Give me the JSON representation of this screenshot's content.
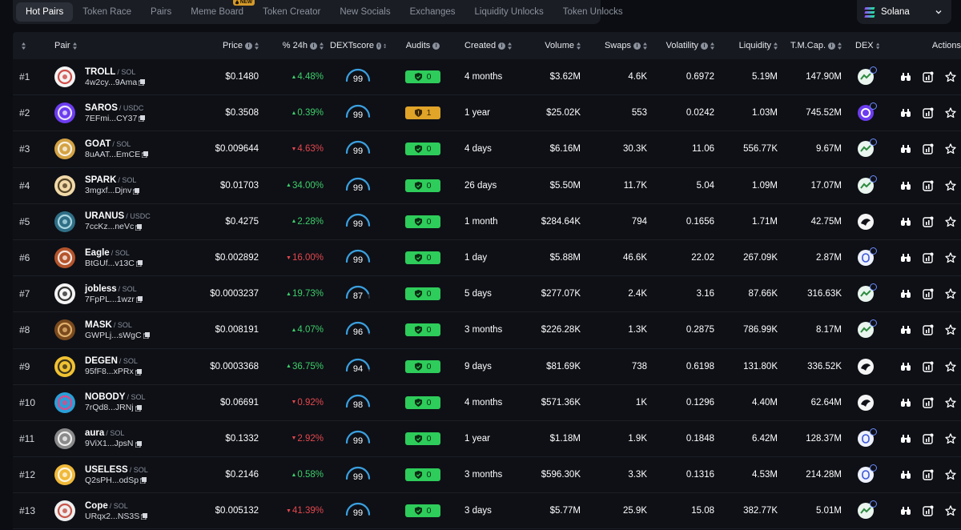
{
  "nav": {
    "tabs": [
      {
        "label": "Hot Pairs",
        "active": true
      },
      {
        "label": "Token Race"
      },
      {
        "label": "Pairs"
      },
      {
        "label": "Meme Board",
        "badge": "NEW"
      },
      {
        "label": "Token Creator"
      },
      {
        "label": "New Socials"
      },
      {
        "label": "Exchanges"
      },
      {
        "label": "Liquidity Unlocks"
      },
      {
        "label": "Token Unlocks"
      }
    ],
    "chain": "Solana"
  },
  "columns": {
    "pair": "Pair",
    "price": "Price",
    "change": "% 24h",
    "score": "DEXTscore",
    "audits": "Audits",
    "created": "Created",
    "volume": "Volume",
    "swaps": "Swaps",
    "volatility": "Volatility",
    "liquidity": "Liquidity",
    "mcap": "T.M.Cap.",
    "dex": "DEX",
    "actions": "Actions"
  },
  "colors": {
    "up": "#3ecf6a",
    "down": "#e5484d",
    "audit_ok": "#2ecc5a",
    "audit_warn": "#e0a428",
    "gauge": "#3aa0e0"
  },
  "rows": [
    {
      "rank": "#1",
      "name": "TROLL",
      "quote": "SOL",
      "addr": "4w2cy...9Ama",
      "price": "$0.1480",
      "dir": "up",
      "change": "4.48%",
      "score": "99",
      "audit_status": "ok",
      "audit_count": "0",
      "created": "4 months",
      "volume": "$3.62M",
      "swaps": "4.6K",
      "volatility": "0.6972",
      "liquidity": "5.19M",
      "mcap": "147.90M",
      "avatar_color": "#f3f3f3",
      "avatar_fg": "#c9302c",
      "dex": "raydium"
    },
    {
      "rank": "#2",
      "name": "SAROS",
      "quote": "USDC",
      "addr": "7EFmi...CY37",
      "price": "$0.3508",
      "dir": "up",
      "change": "0.39%",
      "score": "99",
      "audit_status": "warn",
      "audit_count": "1",
      "created": "1 year",
      "volume": "$25.02K",
      "swaps": "553",
      "volatility": "0.0242",
      "liquidity": "1.03M",
      "mcap": "745.52M",
      "avatar_color": "#6c3cf0",
      "avatar_fg": "#ffffff",
      "dex": "saros"
    },
    {
      "rank": "#3",
      "name": "GOAT",
      "quote": "SOL",
      "addr": "8uAAT...EmCE",
      "price": "$0.009644",
      "dir": "down",
      "change": "4.63%",
      "score": "99",
      "audit_status": "ok",
      "audit_count": "0",
      "created": "4 days",
      "volume": "$6.16M",
      "swaps": "30.3K",
      "volatility": "11.06",
      "liquidity": "556.77K",
      "mcap": "9.67M",
      "avatar_color": "#d4a243",
      "avatar_fg": "#ffffff",
      "dex": "raydium"
    },
    {
      "rank": "#4",
      "name": "SPARK",
      "quote": "SOL",
      "addr": "3mgxf...Djnv",
      "price": "$0.01703",
      "dir": "up",
      "change": "34.00%",
      "score": "99",
      "audit_status": "ok",
      "audit_count": "0",
      "created": "26 days",
      "volume": "$5.50M",
      "swaps": "11.7K",
      "volatility": "5.04",
      "liquidity": "1.09M",
      "mcap": "17.07M",
      "avatar_color": "#f2d9a8",
      "avatar_fg": "#3a2a10",
      "dex": "raydium"
    },
    {
      "rank": "#5",
      "name": "URANUS",
      "quote": "USDC",
      "addr": "7ccKz...neVc",
      "price": "$0.4275",
      "dir": "up",
      "change": "2.28%",
      "score": "99",
      "audit_status": "ok",
      "audit_count": "0",
      "created": "1 month",
      "volume": "$284.64K",
      "swaps": "794",
      "volatility": "0.1656",
      "liquidity": "1.71M",
      "mcap": "42.75M",
      "avatar_color": "#2f6f86",
      "avatar_fg": "#bfe8f2",
      "dex": "orca"
    },
    {
      "rank": "#6",
      "name": "Eagle",
      "quote": "SOL",
      "addr": "BtGUf...v13C",
      "price": "$0.002892",
      "dir": "down",
      "change": "16.00%",
      "score": "99",
      "audit_status": "ok",
      "audit_count": "0",
      "created": "1 day",
      "volume": "$5.88M",
      "swaps": "46.6K",
      "volatility": "22.02",
      "liquidity": "267.09K",
      "mcap": "2.87M",
      "avatar_color": "#b5542c",
      "avatar_fg": "#ffffff",
      "dex": "pump"
    },
    {
      "rank": "#7",
      "name": "jobless",
      "quote": "SOL",
      "addr": "7FpPL...1wzr",
      "price": "$0.0003237",
      "dir": "up",
      "change": "19.73%",
      "score": "87",
      "audit_status": "ok",
      "audit_count": "0",
      "created": "5 days",
      "volume": "$277.07K",
      "swaps": "2.4K",
      "volatility": "3.16",
      "liquidity": "87.66K",
      "mcap": "316.63K",
      "avatar_color": "#f5f5f5",
      "avatar_fg": "#111111",
      "dex": "raydium"
    },
    {
      "rank": "#8",
      "name": "MASK",
      "quote": "SOL",
      "addr": "GWPLj...sWgC",
      "price": "$0.008191",
      "dir": "up",
      "change": "4.07%",
      "score": "96",
      "audit_status": "ok",
      "audit_count": "0",
      "created": "3 months",
      "volume": "$226.28K",
      "swaps": "1.3K",
      "volatility": "0.2875",
      "liquidity": "786.99K",
      "mcap": "8.17M",
      "avatar_color": "#7a4a1e",
      "avatar_fg": "#f2c27a",
      "dex": "raydium"
    },
    {
      "rank": "#9",
      "name": "DEGEN",
      "quote": "SOL",
      "addr": "95fF8...xPRx",
      "price": "$0.0003368",
      "dir": "up",
      "change": "36.75%",
      "score": "94",
      "audit_status": "ok",
      "audit_count": "0",
      "created": "9 days",
      "volume": "$81.69K",
      "swaps": "738",
      "volatility": "0.6198",
      "liquidity": "131.80K",
      "mcap": "336.52K",
      "avatar_color": "#f1c232",
      "avatar_fg": "#1b1b1b",
      "dex": "orca"
    },
    {
      "rank": "#10",
      "name": "NOBODY",
      "quote": "SOL",
      "addr": "7rQd8...JRNj",
      "price": "$0.06691",
      "dir": "down",
      "change": "0.92%",
      "score": "98",
      "audit_status": "ok",
      "audit_count": "0",
      "created": "4 months",
      "volume": "$571.36K",
      "swaps": "1K",
      "volatility": "0.1296",
      "liquidity": "4.40M",
      "mcap": "62.64M",
      "avatar_color": "#2a9fd8",
      "avatar_fg": "#ff3a7a",
      "dex": "orca"
    },
    {
      "rank": "#11",
      "name": "aura",
      "quote": "SOL",
      "addr": "9ViX1...JpsN",
      "price": "$0.1332",
      "dir": "down",
      "change": "2.92%",
      "score": "99",
      "audit_status": "ok",
      "audit_count": "0",
      "created": "1 year",
      "volume": "$1.18M",
      "swaps": "1.9K",
      "volatility": "0.1848",
      "liquidity": "6.42M",
      "mcap": "128.37M",
      "avatar_color": "#8a8a8a",
      "avatar_fg": "#ffffff",
      "dex": "pump"
    },
    {
      "rank": "#12",
      "name": "USELESS",
      "quote": "SOL",
      "addr": "Q2sPH...odSp",
      "price": "$0.2146",
      "dir": "up",
      "change": "0.58%",
      "score": "99",
      "audit_status": "ok",
      "audit_count": "0",
      "created": "3 months",
      "volume": "$596.30K",
      "swaps": "3.3K",
      "volatility": "0.1316",
      "liquidity": "4.53M",
      "mcap": "214.28M",
      "avatar_color": "#f0b93a",
      "avatar_fg": "#ffffff",
      "dex": "pump"
    },
    {
      "rank": "#13",
      "name": "Cope",
      "quote": "SOL",
      "addr": "URqx2...NS3S",
      "price": "$0.005132",
      "dir": "down",
      "change": "41.39%",
      "score": "99",
      "audit_status": "ok",
      "audit_count": "0",
      "created": "3 days",
      "volume": "$5.77M",
      "swaps": "25.9K",
      "volatility": "15.08",
      "liquidity": "382.77K",
      "mcap": "5.01M",
      "avatar_color": "#efefef",
      "avatar_fg": "#c0392b",
      "dex": "raydium"
    }
  ]
}
